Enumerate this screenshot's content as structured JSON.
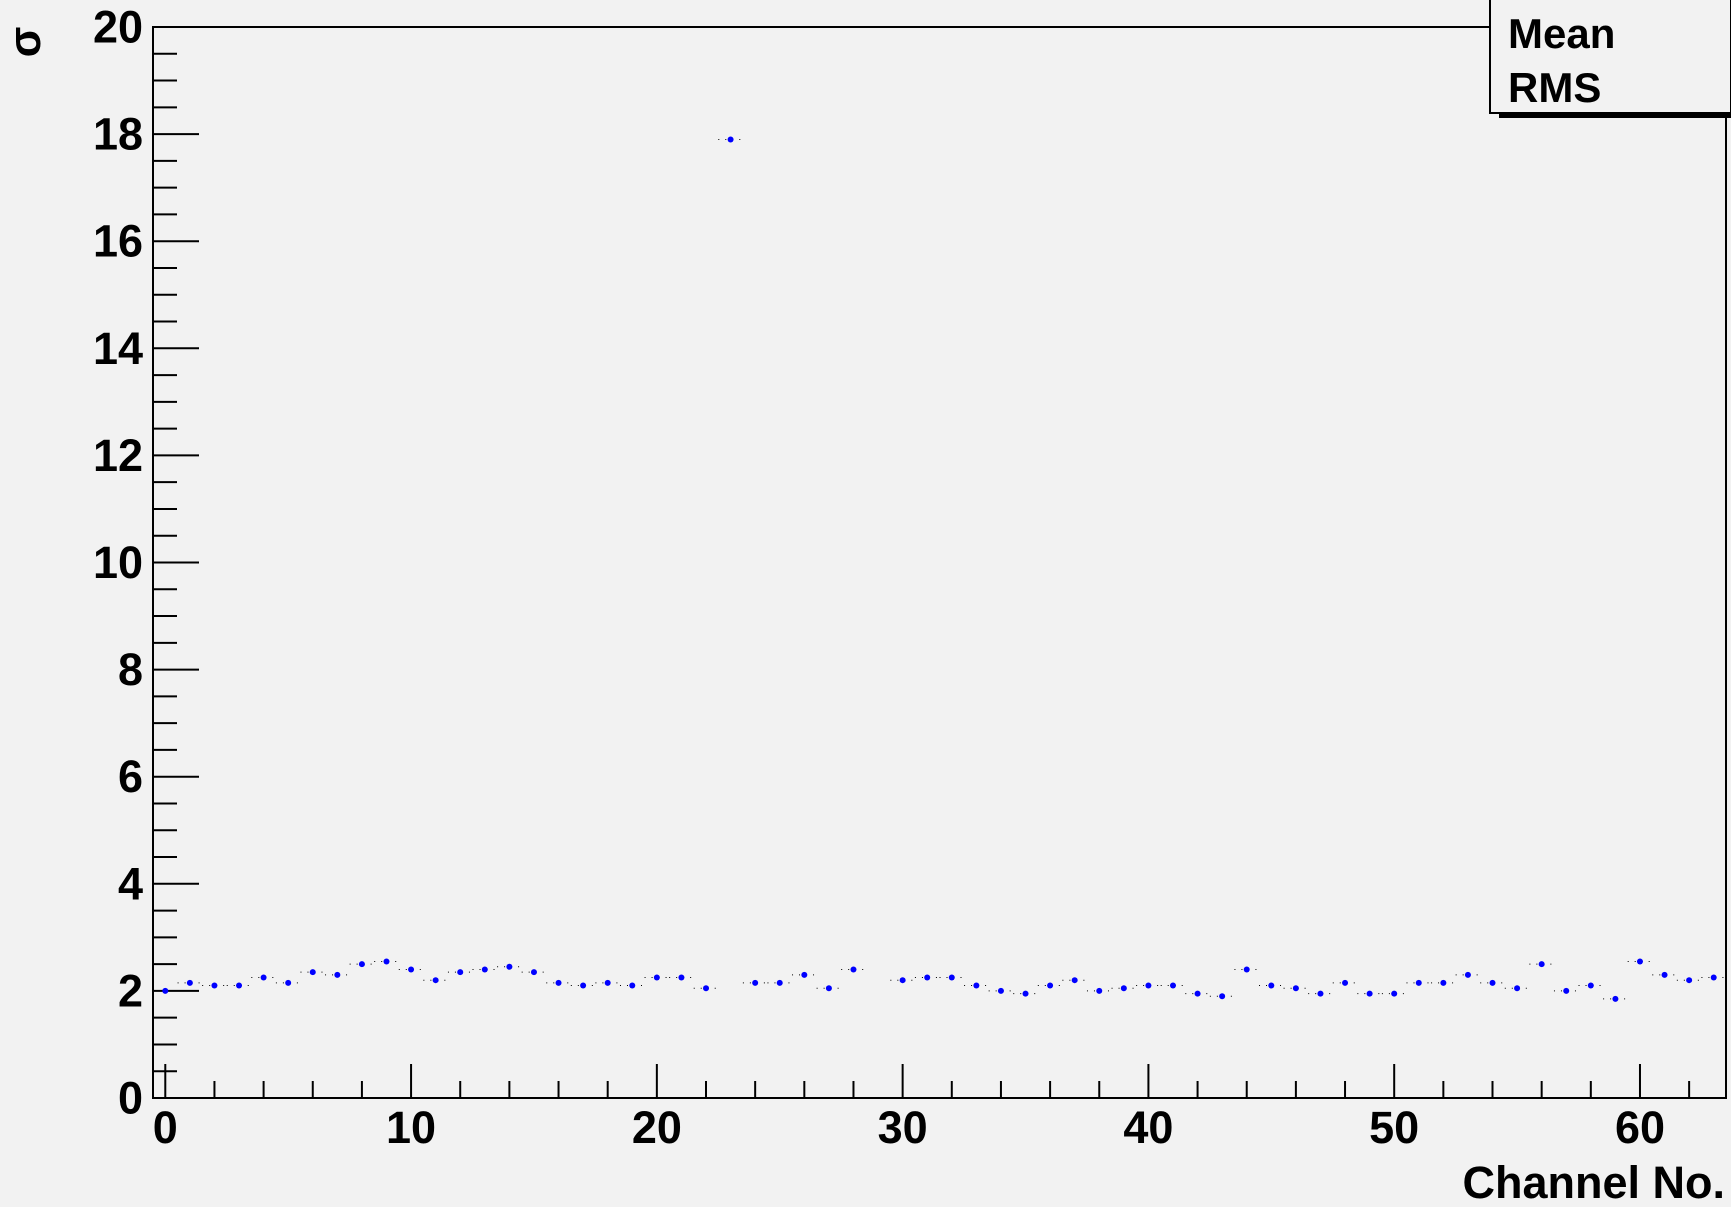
{
  "chart_data": {
    "type": "scatter",
    "xlabel": "Channel No.",
    "ylabel": "σ",
    "xlim": [
      -0.5,
      63.5
    ],
    "ylim": [
      0,
      20
    ],
    "x_ticks": [
      "0",
      "10",
      "20",
      "30",
      "40",
      "50",
      "60"
    ],
    "y_ticks": [
      "0",
      "2",
      "4",
      "6",
      "8",
      "10",
      "12",
      "14",
      "16",
      "18",
      "20"
    ],
    "marker_color": "#0000ff",
    "grid": false,
    "legend": "none",
    "stats_box": {
      "position": "top-right",
      "labels": [
        "Mean",
        "RMS"
      ]
    },
    "series": [
      {
        "x": [
          0,
          1,
          2,
          3,
          4,
          5,
          6,
          7,
          8,
          9,
          10,
          11,
          12,
          13,
          14,
          15,
          16,
          17,
          18,
          19,
          20,
          21,
          22,
          23,
          24,
          25,
          26,
          27,
          28,
          29,
          30,
          31,
          32,
          33,
          34,
          35,
          36,
          37,
          38,
          39,
          40,
          41,
          42,
          43,
          44,
          45,
          46,
          47,
          48,
          49,
          50,
          51,
          52,
          53,
          54,
          55,
          56,
          57,
          58,
          59,
          60,
          61,
          62,
          63
        ],
        "y": [
          2.0,
          2.15,
          2.1,
          2.1,
          2.25,
          2.15,
          2.35,
          2.3,
          2.5,
          2.55,
          2.4,
          2.2,
          2.35,
          2.4,
          2.45,
          2.35,
          2.15,
          2.1,
          2.15,
          2.1,
          2.25,
          2.25,
          2.05,
          17.9,
          2.15,
          2.15,
          2.3,
          2.05,
          2.4,
          null,
          2.2,
          2.25,
          2.25,
          2.1,
          2.0,
          1.95,
          2.1,
          2.2,
          2.0,
          2.05,
          2.1,
          2.1,
          1.95,
          1.9,
          2.4,
          2.1,
          2.05,
          1.95,
          2.15,
          1.95,
          1.95,
          2.15,
          2.15,
          2.3,
          2.15,
          2.05,
          2.5,
          2.0,
          2.1,
          1.85,
          2.55,
          2.3,
          2.2,
          2.25
        ]
      }
    ]
  }
}
